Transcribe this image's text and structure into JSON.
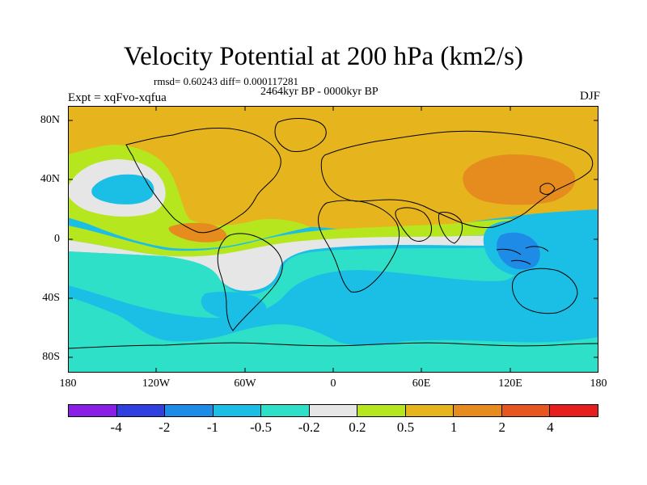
{
  "title": "Velocity Potential at 200 hPa (km2/s)",
  "stats": "rmsd= 0.60243 diff= 0.000117281",
  "period": "2464kyr BP - 0000kyr BP",
  "experiment": "Expt = xqFvo-xqfua",
  "season": "DJF",
  "lat_ticks": [
    "80N",
    "40N",
    "0",
    "40S",
    "80S"
  ],
  "lon_ticks": [
    "180",
    "120W",
    "60W",
    "0",
    "60E",
    "120E",
    "180"
  ],
  "colorbar": {
    "colors": [
      "#8a1ee6",
      "#2f3fe0",
      "#1e8ce6",
      "#1bbfe6",
      "#2ee0c8",
      "#e6e6e6",
      "#b5e61e",
      "#e6b51e",
      "#e68c1e",
      "#e6561e",
      "#e61e1e"
    ],
    "labels": [
      "-4",
      "-2",
      "-1",
      "-0.5",
      "-0.2",
      "0.2",
      "0.5",
      "1",
      "2",
      "4"
    ]
  },
  "field_colors": {
    "strong_neg": "#1e8ce6",
    "neg": "#1bbfe6",
    "weak_neg": "#2ee0c8",
    "neutral": "#e6e6e6",
    "weak_pos": "#b5e61e",
    "pos": "#e6b51e",
    "strong_pos": "#e68c1e"
  }
}
